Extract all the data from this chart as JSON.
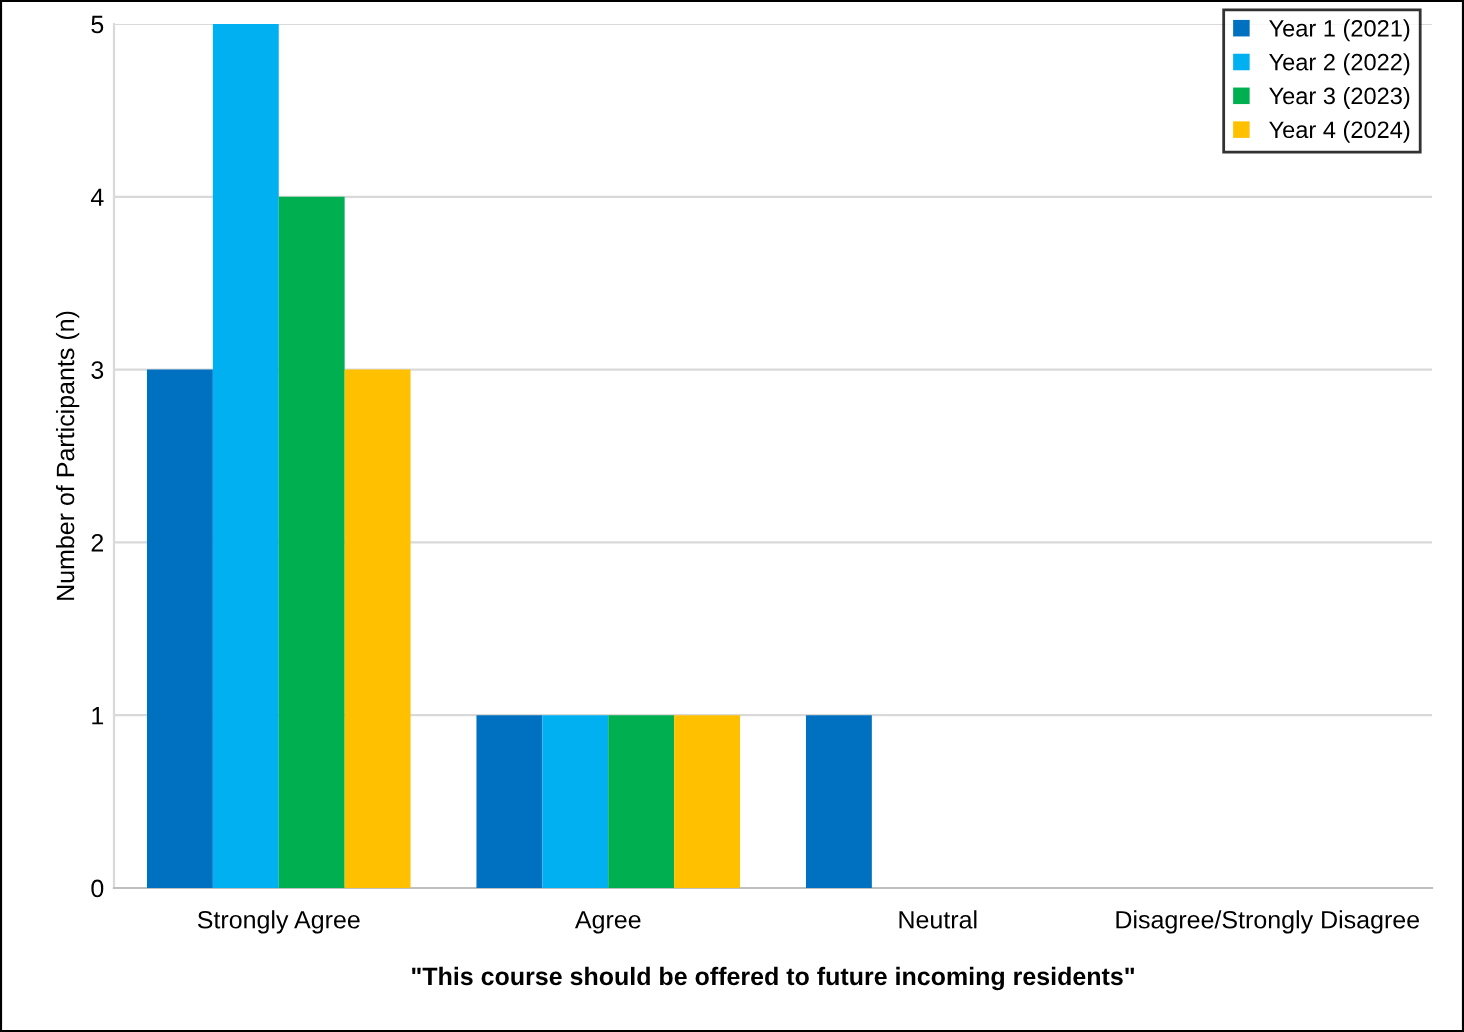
{
  "chart_data": {
    "type": "bar",
    "xlabel": "\"This course should be offered to future incoming residents\"",
    "ylabel": "Number of Participants (n)",
    "categories": [
      "Strongly Agree",
      "Agree",
      "Neutral",
      "Disagree/Strongly Disagree"
    ],
    "series": [
      {
        "name": "Year 1 (2021)",
        "color": "#0070c0",
        "values": [
          3,
          1,
          1,
          0
        ]
      },
      {
        "name": "Year 2 (2022)",
        "color": "#00b0f0",
        "values": [
          5,
          1,
          0,
          0
        ]
      },
      {
        "name": "Year 3 (2023)",
        "color": "#00b050",
        "values": [
          4,
          1,
          0,
          0
        ]
      },
      {
        "name": "Year 4 (2024)",
        "color": "#ffc000",
        "values": [
          3,
          1,
          0,
          0
        ]
      }
    ],
    "ylim": [
      0,
      5
    ],
    "yticks": [
      0,
      1,
      2,
      3,
      4,
      5
    ],
    "grid": "y",
    "legend": "top right"
  }
}
